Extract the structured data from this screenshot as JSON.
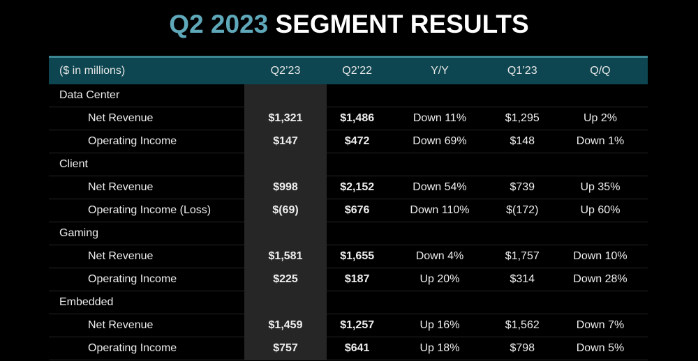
{
  "title": {
    "accent": "Q2 2023",
    "main": "SEGMENT RESULTS"
  },
  "colors": {
    "accent": "#5fa8ba",
    "header_bg": "#0d4650",
    "highlight_col": "#262626"
  },
  "table": {
    "headers": [
      "($ in millions)",
      "Q2’23",
      "Q2’22",
      "Y/Y",
      "Q1’23",
      "Q/Q"
    ],
    "rows": [
      {
        "type": "segment",
        "label": "Data Center"
      },
      {
        "type": "item",
        "label": "Net Revenue",
        "values": [
          "$1,321",
          "$1,486",
          "Down 11%",
          "$1,295",
          "Up 2%"
        ]
      },
      {
        "type": "item",
        "label": "Operating Income",
        "values": [
          "$147",
          "$472",
          "Down 69%",
          "$148",
          "Down 1%"
        ]
      },
      {
        "type": "segment",
        "label": "Client"
      },
      {
        "type": "item",
        "label": "Net Revenue",
        "values": [
          "$998",
          "$2,152",
          "Down 54%",
          "$739",
          "Up 35%"
        ]
      },
      {
        "type": "item",
        "label": "Operating Income (Loss)",
        "values": [
          "$(69)",
          "$676",
          "Down 110%",
          "$(172)",
          "Up 60%"
        ]
      },
      {
        "type": "segment",
        "label": "Gaming"
      },
      {
        "type": "item",
        "label": "Net Revenue",
        "values": [
          "$1,581",
          "$1,655",
          "Down 4%",
          "$1,757",
          "Down 10%"
        ]
      },
      {
        "type": "item",
        "label": "Operating Income",
        "values": [
          "$225",
          "$187",
          "Up 20%",
          "$314",
          "Down 28%"
        ]
      },
      {
        "type": "segment",
        "label": "Embedded"
      },
      {
        "type": "item",
        "label": "Net Revenue",
        "values": [
          "$1,459",
          "$1,257",
          "Up 16%",
          "$1,562",
          "Down 7%"
        ]
      },
      {
        "type": "item",
        "label": "Operating Income",
        "values": [
          "$757",
          "$641",
          "Up 18%",
          "$798",
          "Down 5%"
        ]
      }
    ]
  }
}
